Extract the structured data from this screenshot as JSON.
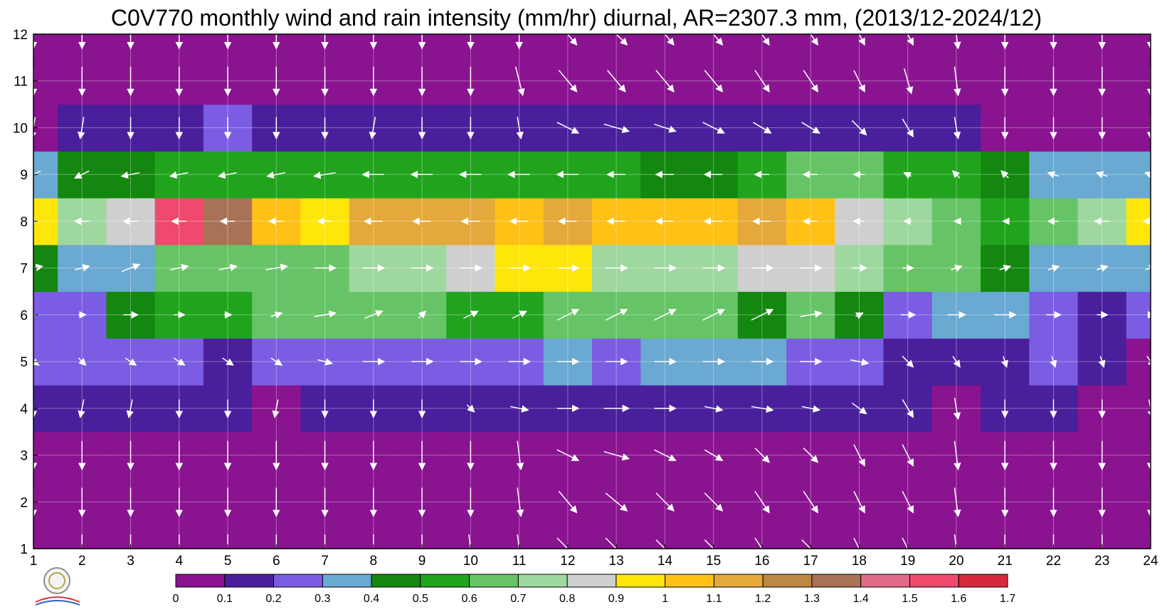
{
  "chart_data": {
    "type": "heatmap",
    "title": "C0V770 monthly wind and rain intensity (mm/hr) diurnal, AR=2307.3 mm, (2013/12-2024/12)",
    "x_ticks": [
      "1",
      "2",
      "3",
      "4",
      "5",
      "6",
      "7",
      "8",
      "9",
      "10",
      "11",
      "12",
      "13",
      "14",
      "15",
      "16",
      "17",
      "18",
      "19",
      "20",
      "21",
      "22",
      "23",
      "24"
    ],
    "y_ticks": [
      "1",
      "2",
      "3",
      "4",
      "5",
      "6",
      "7",
      "8",
      "9",
      "10",
      "11",
      "12"
    ],
    "xlim": [
      1,
      24
    ],
    "ylim": [
      1,
      12
    ],
    "grid": true,
    "colorbar": {
      "position": "bottom",
      "levels": [
        "0",
        "0.1",
        "0.2",
        "0.3",
        "0.4",
        "0.5",
        "0.6",
        "0.7",
        "0.8",
        "0.9",
        "1",
        "1.1",
        "1.2",
        "1.3",
        "1.4",
        "1.5",
        "1.6",
        "1.7"
      ],
      "colors": [
        "#8a1390",
        "#4a1f9c",
        "#7b5de3",
        "#6aa9d1",
        "#13870f",
        "#21a31e",
        "#66c466",
        "#9fd89f",
        "#cfcfcf",
        "#ffe60a",
        "#ffc116",
        "#e4a93a",
        "#bd8744",
        "#a87256",
        "#e06a87",
        "#ef4a6d",
        "#d8283d"
      ]
    },
    "rain_rows": [
      {
        "month": 1,
        "values": [
          0,
          0,
          0,
          0,
          0,
          0,
          0,
          0,
          0,
          0,
          0,
          0,
          0,
          0,
          0,
          0,
          0,
          0,
          0,
          0,
          0,
          0,
          0,
          0
        ]
      },
      {
        "month": 2,
        "values": [
          0,
          0,
          0,
          0,
          0,
          0,
          0,
          0,
          0,
          0,
          0,
          0,
          0,
          0,
          0,
          0,
          0,
          0,
          0,
          0,
          0,
          0,
          0,
          0
        ]
      },
      {
        "month": 3,
        "values": [
          0,
          0,
          0,
          0,
          0,
          0,
          0,
          0,
          0,
          0,
          0,
          0,
          0,
          0,
          0,
          0,
          0,
          0,
          0,
          0,
          0,
          0,
          0,
          0
        ]
      },
      {
        "month": 4,
        "values": [
          0.12,
          0.12,
          0.12,
          0.12,
          0.13,
          0.08,
          0.12,
          0.12,
          0.12,
          0.12,
          0.13,
          0.14,
          0.12,
          0.11,
          0.14,
          0.13,
          0.13,
          0.15,
          0.14,
          0.08,
          0.13,
          0.12,
          0.05,
          0.05
        ]
      },
      {
        "month": 5,
        "values": [
          0.23,
          0.2,
          0.2,
          0.2,
          0.19,
          0.2,
          0.25,
          0.25,
          0.25,
          0.25,
          0.28,
          0.3,
          0.25,
          0.3,
          0.3,
          0.3,
          0.25,
          0.2,
          0.15,
          0.18,
          0.18,
          0.2,
          0.12,
          0.08
        ]
      },
      {
        "month": 6,
        "values": [
          0.27,
          0.25,
          0.42,
          0.55,
          0.5,
          0.6,
          0.6,
          0.65,
          0.6,
          0.55,
          0.58,
          0.6,
          0.6,
          0.62,
          0.6,
          0.45,
          0.62,
          0.45,
          0.2,
          0.3,
          0.3,
          0.25,
          0.18,
          0.2
        ]
      },
      {
        "month": 7,
        "values": [
          0.45,
          0.33,
          0.38,
          0.6,
          0.6,
          0.6,
          0.65,
          0.7,
          0.78,
          0.85,
          0.9,
          0.95,
          0.75,
          0.75,
          0.75,
          0.8,
          0.82,
          0.7,
          0.68,
          0.65,
          0.45,
          0.32,
          0.32,
          0.3
        ]
      },
      {
        "month": 8,
        "values": [
          0.95,
          0.78,
          0.8,
          1.52,
          1.3,
          1.05,
          0.95,
          1.1,
          1.15,
          1.1,
          1.05,
          1.1,
          1.05,
          1.0,
          1.0,
          1.1,
          1.05,
          0.8,
          0.78,
          0.6,
          0.5,
          0.6,
          0.78,
          0.92
        ]
      },
      {
        "month": 9,
        "values": [
          0.35,
          0.45,
          0.45,
          0.55,
          0.55,
          0.55,
          0.55,
          0.55,
          0.55,
          0.55,
          0.55,
          0.55,
          0.5,
          0.45,
          0.45,
          0.55,
          0.6,
          0.68,
          0.55,
          0.5,
          0.42,
          0.3,
          0.3,
          0.3
        ]
      },
      {
        "month": 10,
        "values": [
          0.08,
          0.13,
          0.15,
          0.18,
          0.2,
          0.16,
          0.13,
          0.13,
          0.13,
          0.13,
          0.12,
          0.12,
          0.12,
          0.12,
          0.12,
          0.15,
          0.15,
          0.15,
          0.17,
          0.12,
          0.05,
          0.05,
          0.05,
          0.05
        ]
      },
      {
        "month": 11,
        "values": [
          0,
          0.08,
          0,
          0,
          0,
          0,
          0,
          0,
          0,
          0,
          0,
          0,
          0,
          0,
          0,
          0,
          0,
          0,
          0,
          0,
          0,
          0,
          0,
          0
        ]
      },
      {
        "month": 12,
        "values": [
          0,
          0,
          0,
          0,
          0,
          0,
          0,
          0,
          0,
          0,
          0,
          0,
          0,
          0,
          0,
          0,
          0,
          0,
          0,
          0,
          0,
          0,
          0,
          0
        ]
      }
    ],
    "wind_rows": [
      {
        "month": 1,
        "u": [
          0.05,
          0,
          0,
          0,
          0,
          0,
          0,
          0,
          0,
          0.1,
          0.1,
          0.6,
          0.6,
          0.5,
          0.5,
          0.4,
          0.5,
          0.3,
          0.3,
          0.1,
          0,
          0,
          0,
          0
        ],
        "v": [
          -0.7,
          -0.8,
          -0.8,
          -0.8,
          -0.8,
          -0.8,
          -0.8,
          -0.8,
          -0.8,
          -0.8,
          -0.8,
          -0.6,
          -0.6,
          -0.5,
          -0.5,
          -0.6,
          -0.5,
          -0.6,
          -0.6,
          -0.8,
          -0.8,
          -0.8,
          -0.8,
          -0.8
        ]
      },
      {
        "month": 2,
        "u": [
          0,
          0,
          0,
          0,
          0,
          0,
          0,
          0,
          0,
          0,
          0.1,
          0.5,
          0.6,
          0.5,
          0.5,
          0.4,
          0.4,
          0.3,
          0.3,
          0.1,
          0,
          0,
          0,
          0
        ],
        "v": [
          -0.8,
          -0.8,
          -0.8,
          -0.8,
          -0.8,
          -0.8,
          -0.8,
          -0.8,
          -0.8,
          -0.8,
          -0.8,
          -0.6,
          -0.5,
          -0.5,
          -0.5,
          -0.6,
          -0.6,
          -0.6,
          -0.6,
          -0.8,
          -0.8,
          -0.8,
          -0.8,
          -0.8
        ]
      },
      {
        "month": 3,
        "u": [
          0,
          0,
          0,
          0,
          0,
          0,
          0,
          0,
          0,
          0,
          0.1,
          0.6,
          0.7,
          0.6,
          0.5,
          0.4,
          0.4,
          0.3,
          0.3,
          0.1,
          0,
          0,
          0,
          0
        ],
        "v": [
          -0.8,
          -0.8,
          -0.8,
          -0.8,
          -0.8,
          -0.8,
          -0.8,
          -0.8,
          -0.8,
          -0.8,
          -0.8,
          -0.3,
          -0.2,
          -0.3,
          -0.3,
          -0.4,
          -0.4,
          -0.6,
          -0.6,
          -0.8,
          -0.8,
          -0.8,
          -0.8,
          -0.8
        ]
      },
      {
        "month": 4,
        "u": [
          0,
          -0.1,
          -0.1,
          0,
          0,
          -0.1,
          0,
          0,
          0,
          0.2,
          0.5,
          0.6,
          0.7,
          0.6,
          0.5,
          0.6,
          0.5,
          0.4,
          0.3,
          0.1,
          0,
          0,
          0,
          0.1
        ],
        "v": [
          -0.5,
          -0.5,
          -0.5,
          -0.5,
          -0.5,
          -0.5,
          -0.5,
          -0.5,
          -0.5,
          -0.2,
          -0.1,
          0,
          0,
          0,
          -0.1,
          -0.1,
          -0.1,
          -0.3,
          -0.5,
          -0.6,
          -0.5,
          -0.5,
          -0.5,
          -0.5
        ]
      },
      {
        "month": 5,
        "u": [
          0.3,
          0.2,
          0.3,
          0.3,
          0.3,
          0.3,
          0.4,
          0.6,
          0.6,
          0.6,
          0.6,
          0.6,
          0.6,
          0.6,
          0.6,
          0.6,
          0.6,
          0.5,
          0.3,
          0.2,
          0.1,
          0.1,
          0.1,
          0.2
        ],
        "v": [
          -0.2,
          -0.2,
          -0.2,
          -0.2,
          -0.2,
          -0.2,
          -0.1,
          0,
          0,
          0,
          0,
          0,
          0,
          0,
          0,
          0,
          0,
          -0.1,
          -0.3,
          -0.3,
          -0.3,
          -0.3,
          -0.3,
          -0.3
        ]
      },
      {
        "month": 6,
        "u": [
          0.1,
          0.2,
          0.4,
          0.3,
          0.2,
          0.3,
          0.6,
          0.5,
          0.2,
          0.4,
          0.4,
          0.6,
          0.6,
          0.6,
          0.6,
          0.6,
          0.6,
          0.2,
          0.4,
          0.5,
          0.6,
          0.4,
          0.3,
          0.2
        ],
        "v": [
          0,
          0,
          0,
          0,
          0,
          0.1,
          0.1,
          0.2,
          0.2,
          0.2,
          0.2,
          0.3,
          0.3,
          0.3,
          0.3,
          0.3,
          0.1,
          0.1,
          0,
          0,
          0,
          0,
          0,
          0
        ]
      },
      {
        "month": 7,
        "u": [
          0.5,
          0.4,
          0.5,
          0.5,
          0.5,
          0.6,
          0.6,
          0.6,
          0.6,
          0.6,
          0.6,
          0.6,
          0.6,
          0.6,
          0.6,
          0.6,
          0.6,
          0.4,
          0.3,
          0.3,
          0.3,
          0.3,
          0.3,
          0.3
        ],
        "v": [
          0.1,
          0.1,
          0.2,
          0.1,
          0.1,
          0.1,
          0,
          0,
          0,
          0,
          0,
          0,
          0,
          0,
          0,
          0,
          0,
          0,
          0,
          0.1,
          0.1,
          0.1,
          0.1,
          0.1
        ]
      },
      {
        "month": 8,
        "u": [
          -0.3,
          -0.4,
          -0.4,
          -0.4,
          -0.4,
          -0.4,
          -0.4,
          -0.5,
          -0.5,
          -0.5,
          -0.5,
          -0.5,
          -0.5,
          -0.5,
          -0.5,
          -0.5,
          -0.4,
          -0.3,
          -0.2,
          -0.1,
          -0.1,
          -0.3,
          -0.4,
          -0.4
        ],
        "v": [
          0,
          0,
          0,
          0,
          0,
          0,
          0,
          0,
          0,
          0,
          0,
          0,
          0,
          0,
          0,
          0,
          0,
          0,
          0,
          0,
          0,
          0,
          0,
          0
        ]
      },
      {
        "month": 9,
        "u": [
          -0.4,
          -0.4,
          -0.5,
          -0.5,
          -0.5,
          -0.5,
          -0.6,
          -0.6,
          -0.6,
          -0.6,
          -0.6,
          -0.6,
          -0.5,
          -0.5,
          -0.5,
          -0.4,
          -0.4,
          -0.3,
          -0.2,
          -0.2,
          -0.2,
          -0.3,
          -0.3,
          -0.3
        ],
        "v": [
          -0.2,
          -0.2,
          -0.1,
          -0.1,
          -0.1,
          -0.1,
          -0.1,
          0,
          0,
          0,
          0,
          0,
          0,
          0,
          0,
          0,
          0,
          0,
          0.1,
          0.2,
          0.2,
          0.1,
          0.1,
          0.1
        ]
      },
      {
        "month": 10,
        "u": [
          -0.1,
          -0.1,
          0,
          0,
          0,
          0,
          0,
          -0.1,
          0,
          0,
          0.1,
          0.6,
          0.7,
          0.6,
          0.6,
          0.5,
          0.5,
          0.4,
          0.3,
          0.1,
          0,
          0,
          0,
          0
        ],
        "v": [
          -0.6,
          -0.6,
          -0.6,
          -0.6,
          -0.6,
          -0.6,
          -0.6,
          -0.6,
          -0.6,
          -0.6,
          -0.6,
          -0.3,
          -0.2,
          -0.2,
          -0.3,
          -0.3,
          -0.3,
          -0.4,
          -0.5,
          -0.6,
          -0.6,
          -0.6,
          -0.6,
          -0.6
        ]
      },
      {
        "month": 11,
        "u": [
          0,
          0,
          0,
          0,
          0,
          0,
          0,
          0,
          0,
          0,
          0.2,
          0.5,
          0.5,
          0.5,
          0.5,
          0.4,
          0.4,
          0.3,
          0.2,
          0.1,
          0,
          0,
          0,
          0
        ],
        "v": [
          -0.8,
          -0.8,
          -0.8,
          -0.8,
          -0.8,
          -0.8,
          -0.8,
          -0.8,
          -0.8,
          -0.8,
          -0.8,
          -0.6,
          -0.6,
          -0.6,
          -0.6,
          -0.6,
          -0.6,
          -0.6,
          -0.7,
          -0.8,
          -0.8,
          -0.8,
          -0.8,
          -0.8
        ]
      },
      {
        "month": 12,
        "u": [
          0,
          0,
          0,
          0,
          0,
          0,
          0,
          0,
          0,
          0,
          0,
          0.5,
          0.6,
          0.5,
          0.5,
          0.4,
          0.4,
          0.3,
          0.3,
          0.1,
          0,
          0,
          0,
          0
        ],
        "v": [
          -0.8,
          -0.8,
          -0.8,
          -0.8,
          -0.8,
          -0.8,
          -0.8,
          -0.8,
          -0.8,
          -0.8,
          -0.8,
          -0.6,
          -0.6,
          -0.6,
          -0.6,
          -0.6,
          -0.6,
          -0.6,
          -0.6,
          -0.8,
          -0.8,
          -0.8,
          -0.8,
          -0.8
        ]
      }
    ]
  }
}
